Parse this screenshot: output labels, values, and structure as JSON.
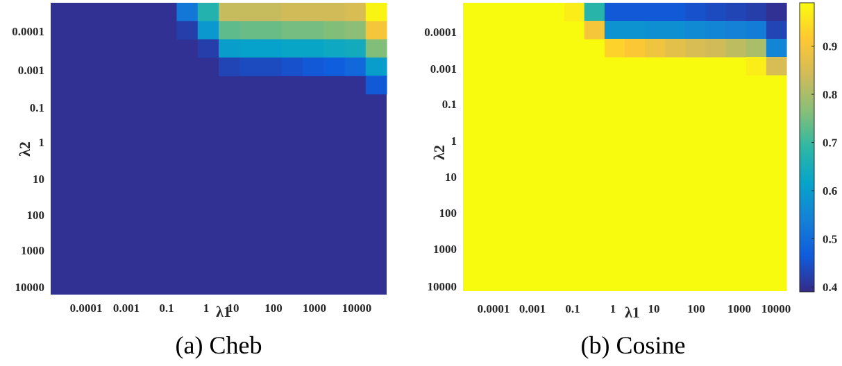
{
  "figure": {
    "type": "heatmap_pair"
  },
  "colors": {
    "colormap": "parula",
    "colormap_stops": [
      "#352a87",
      "#0f5cdd",
      "#1481d6",
      "#06a4ca",
      "#2eb7a4",
      "#87bf77",
      "#d1bb59",
      "#fec832",
      "#f9fb0e"
    ]
  },
  "chart_data": [
    {
      "type": "heatmap",
      "caption": "(a) Cheb",
      "xlabel": "λ1",
      "ylabel": "λ2",
      "x_ticks": [
        "0.0001",
        "0.001",
        "0.1",
        "1",
        "10",
        "100",
        "1000",
        "10000"
      ],
      "y_ticks": [
        "0.0001",
        "0.001",
        "0.1",
        "1",
        "10",
        "100",
        "1000",
        "10000"
      ],
      "x_scale": "log",
      "y_scale": "log",
      "grid_cols": 16,
      "grid_rows": 16,
      "color_range": [
        0.39,
        0.99
      ],
      "background_value": 0.4,
      "cells": [
        [
          0,
          6,
          0.52
        ],
        [
          0,
          7,
          0.67
        ],
        [
          0,
          8,
          0.83
        ],
        [
          0,
          9,
          0.83
        ],
        [
          0,
          10,
          0.83
        ],
        [
          0,
          11,
          0.84
        ],
        [
          0,
          12,
          0.84
        ],
        [
          0,
          13,
          0.84
        ],
        [
          0,
          14,
          0.85
        ],
        [
          0,
          15,
          0.98
        ],
        [
          1,
          6,
          0.42
        ],
        [
          1,
          7,
          0.59
        ],
        [
          1,
          8,
          0.73
        ],
        [
          1,
          9,
          0.74
        ],
        [
          1,
          10,
          0.74
        ],
        [
          1,
          11,
          0.75
        ],
        [
          1,
          12,
          0.75
        ],
        [
          1,
          13,
          0.76
        ],
        [
          1,
          14,
          0.77
        ],
        [
          1,
          15,
          0.9
        ],
        [
          2,
          7,
          0.42
        ],
        [
          2,
          8,
          0.6
        ],
        [
          2,
          9,
          0.61
        ],
        [
          2,
          10,
          0.61
        ],
        [
          2,
          11,
          0.62
        ],
        [
          2,
          12,
          0.62
        ],
        [
          2,
          13,
          0.63
        ],
        [
          2,
          14,
          0.64
        ],
        [
          2,
          15,
          0.76
        ],
        [
          3,
          8,
          0.43
        ],
        [
          3,
          9,
          0.44
        ],
        [
          3,
          10,
          0.44
        ],
        [
          3,
          11,
          0.45
        ],
        [
          3,
          12,
          0.46
        ],
        [
          3,
          13,
          0.47
        ],
        [
          3,
          14,
          0.49
        ],
        [
          3,
          15,
          0.6
        ],
        [
          4,
          15,
          0.46
        ]
      ]
    },
    {
      "type": "heatmap",
      "caption": "(b) Cosine",
      "xlabel": "λ1",
      "ylabel": "λ2",
      "x_ticks": [
        "0.0001",
        "0.001",
        "0.1",
        "1",
        "10",
        "100",
        "1000",
        "10000"
      ],
      "y_ticks": [
        "0.0001",
        "0.001",
        "0.1",
        "1",
        "10",
        "100",
        "1000",
        "10000"
      ],
      "x_scale": "log",
      "y_scale": "log",
      "grid_cols": 16,
      "grid_rows": 16,
      "color_range": [
        0.39,
        0.99
      ],
      "background_value": 0.99,
      "colorbar": {
        "ticks": [
          0.4,
          0.5,
          0.6,
          0.7,
          0.8,
          0.9
        ],
        "labels": [
          "0.4",
          "0.5",
          "0.6",
          "0.7",
          "0.8",
          "0.9"
        ]
      },
      "cells": [
        [
          0,
          5,
          0.97
        ],
        [
          0,
          6,
          0.68
        ],
        [
          0,
          7,
          0.46
        ],
        [
          0,
          8,
          0.46
        ],
        [
          0,
          9,
          0.46
        ],
        [
          0,
          10,
          0.46
        ],
        [
          0,
          11,
          0.45
        ],
        [
          0,
          12,
          0.44
        ],
        [
          0,
          13,
          0.43
        ],
        [
          0,
          14,
          0.42
        ],
        [
          0,
          15,
          0.4
        ],
        [
          1,
          6,
          0.9
        ],
        [
          1,
          7,
          0.58
        ],
        [
          1,
          8,
          0.58
        ],
        [
          1,
          9,
          0.57
        ],
        [
          1,
          10,
          0.57
        ],
        [
          1,
          11,
          0.56
        ],
        [
          1,
          12,
          0.55
        ],
        [
          1,
          13,
          0.54
        ],
        [
          1,
          14,
          0.53
        ],
        [
          1,
          15,
          0.43
        ],
        [
          2,
          7,
          0.93
        ],
        [
          2,
          8,
          0.91
        ],
        [
          2,
          9,
          0.89
        ],
        [
          2,
          10,
          0.87
        ],
        [
          2,
          11,
          0.85
        ],
        [
          2,
          12,
          0.84
        ],
        [
          2,
          13,
          0.82
        ],
        [
          2,
          14,
          0.8
        ],
        [
          2,
          15,
          0.55
        ],
        [
          3,
          14,
          0.97
        ],
        [
          3,
          15,
          0.85
        ]
      ]
    }
  ]
}
